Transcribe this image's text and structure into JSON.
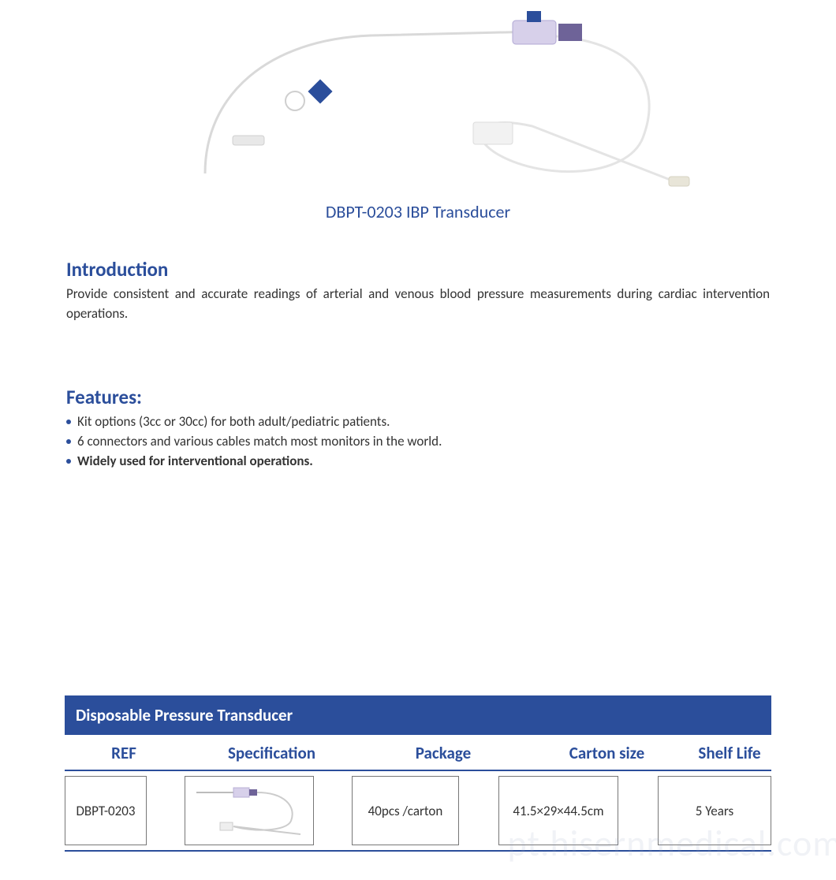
{
  "colors": {
    "brand": "#2b4e9b",
    "text": "#2f2f2f",
    "bullet": "#2b4e9b",
    "table_header_bg": "#2b4e9b",
    "table_rule": "#2b4e9b",
    "cell_border": "#777777",
    "watermark": "#9aa7c4"
  },
  "product": {
    "title": "DBPT-0203 IBP Transducer"
  },
  "introduction": {
    "heading": "Introduction",
    "text": "Provide consistent and accurate readings of arterial and venous blood pressure measurements during cardiac intervention operations."
  },
  "features": {
    "heading": "Features:",
    "items": [
      {
        "text": "Kit options (3cc or 30cc) for both adult/pediatric patients.",
        "bold": false
      },
      {
        "text": "6 connectors and various cables match most monitors in the world.",
        "bold": false
      },
      {
        "text": "Widely used for interventional operations.",
        "bold": true
      }
    ]
  },
  "table": {
    "title": "Disposable Pressure Transducer",
    "columns": [
      "REF",
      "Specification",
      "Package",
      "Carton  size",
      "Shelf Life"
    ],
    "row": {
      "ref": "DBPT-0203",
      "package": "40pcs /carton",
      "carton_size": "41.5×29×44.5cm",
      "shelf_life": "5 Years"
    }
  },
  "watermark": "pt.hisernmedical.com"
}
